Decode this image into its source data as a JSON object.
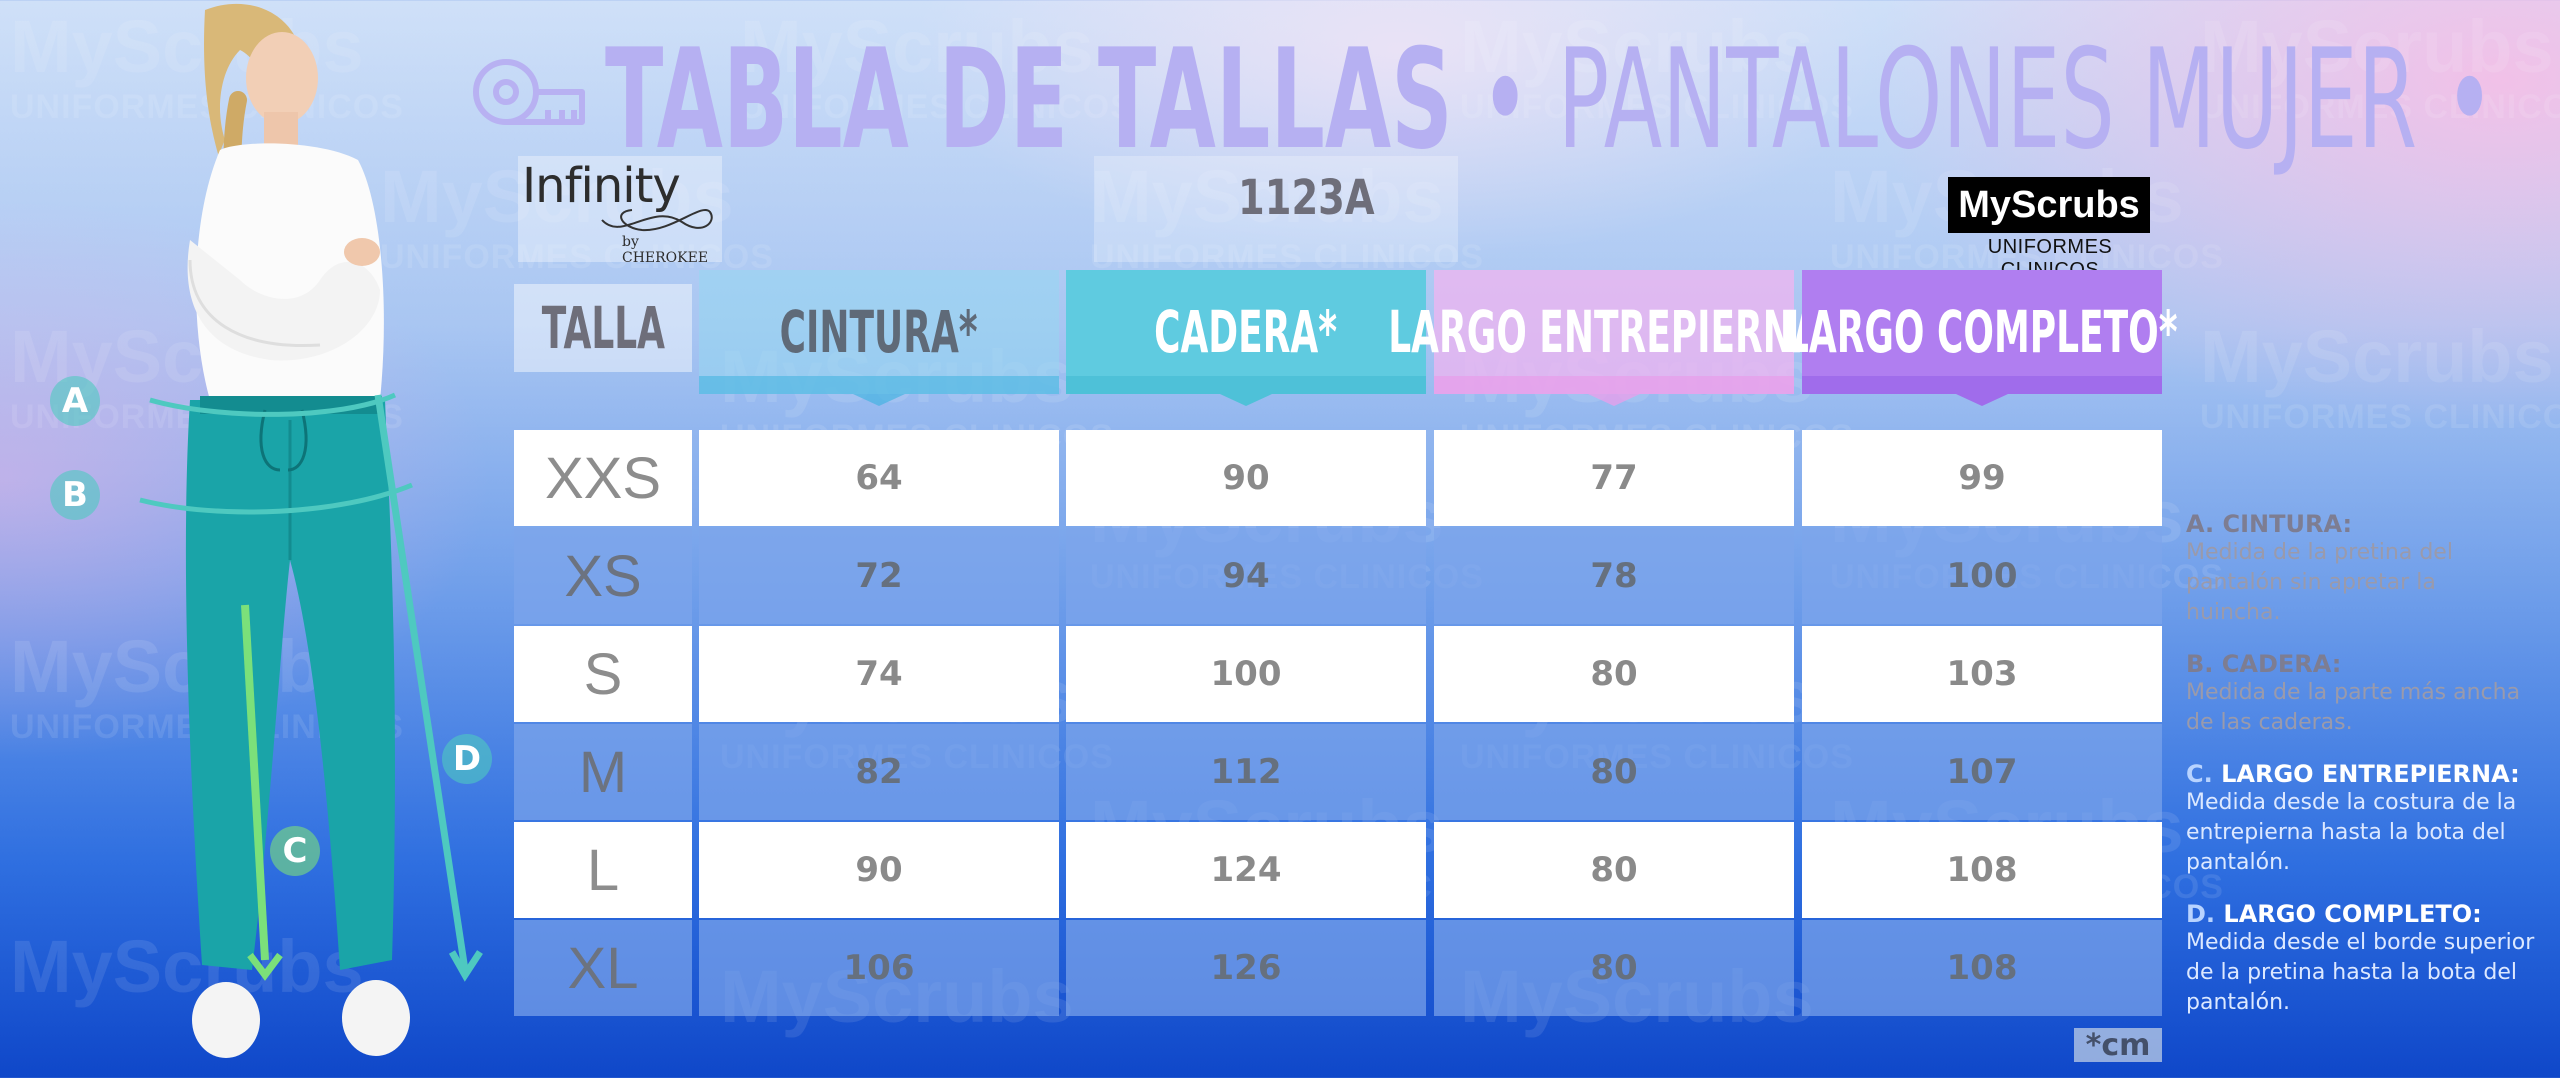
{
  "title": {
    "bold": "TABLA DE TALLAS",
    "rest": " • PANTALONES MUJER •"
  },
  "watermark": {
    "brand": "MyScrubs",
    "sub": "UNIFORMES CLINICOS"
  },
  "header": {
    "brand_left": "Infinity",
    "brand_left_sub": "by CHEROKEE",
    "model": "1123A",
    "logo_text": "MyScrubs",
    "logo_sub": "UNIFORMES CLINICOS"
  },
  "figure": {
    "markers": [
      "A",
      "B",
      "C",
      "D"
    ]
  },
  "columns": {
    "talla": "TALLA",
    "cintura": "CINTURA*",
    "cadera": "CADERA*",
    "entrepierna": "LARGO ENTREPIERNA*",
    "completo": "LARGO COMPLETO*"
  },
  "rows": [
    {
      "size": "XXS",
      "cintura": "64",
      "cadera": "90",
      "entrepierna": "77",
      "completo": "99"
    },
    {
      "size": "XS",
      "cintura": "72",
      "cadera": "94",
      "entrepierna": "78",
      "completo": "100"
    },
    {
      "size": "S",
      "cintura": "74",
      "cadera": "100",
      "entrepierna": "80",
      "completo": "103"
    },
    {
      "size": "M",
      "cintura": "82",
      "cadera": "112",
      "entrepierna": "80",
      "completo": "107"
    },
    {
      "size": "L",
      "cintura": "90",
      "cadera": "124",
      "entrepierna": "80",
      "completo": "108"
    },
    {
      "size": "XL",
      "cintura": "106",
      "cadera": "126",
      "entrepierna": "80",
      "completo": "108"
    }
  ],
  "legend": [
    {
      "letter": "A.",
      "title": "CINTURA:",
      "text": "Medida de la pretina del pantalón sin apretar la huincha."
    },
    {
      "letter": "B.",
      "title": "CADERA:",
      "text": "Medida de la parte más ancha de las caderas."
    },
    {
      "letter": "C.",
      "title": "LARGO ENTREPIERNA:",
      "text": "Medida desde la costura de la entrepierna hasta la bota del pantalón."
    },
    {
      "letter": "D.",
      "title": "LARGO COMPLETO:",
      "text": "Medida desde el borde superior de la pretina hasta la bota del pantalón."
    }
  ],
  "unit_note": "*cm",
  "colors": {
    "cadera_header": "#5fcbe0",
    "completo_header": "#b07ef0",
    "entrepierna_header": "#f0b4f0",
    "marker": "#4ec9c0",
    "pants": "#1aa4a8"
  }
}
